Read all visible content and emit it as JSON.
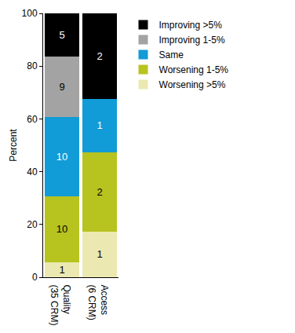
{
  "chart_data": {
    "type": "bar",
    "stacked": true,
    "y_label": "Percent",
    "categories": [
      "Quality\n(35 CRM)",
      "Access\n(6 CRM)"
    ],
    "series": [
      {
        "name": "Worsening >5%",
        "color": "#ebe9b1",
        "values": [
          5.7,
          17.4
        ],
        "counts": [
          1,
          1
        ]
      },
      {
        "name": "Worsening 1-5%",
        "color": "#b7c31f",
        "values": [
          25,
          30
        ],
        "counts": [
          10,
          2
        ]
      },
      {
        "name": "Same",
        "color": "#119bd7",
        "values": [
          30,
          20.2
        ],
        "counts": [
          10,
          1
        ]
      },
      {
        "name": "Improving 1-5%",
        "color": "#a3a3a3",
        "values": [
          22.8,
          0
        ],
        "counts": [
          9,
          null
        ]
      },
      {
        "name": "Improving >5%",
        "color": "#000000",
        "values": [
          16.5,
          32.4
        ],
        "counts": [
          5,
          2
        ]
      }
    ],
    "ylim": [
      0,
      100
    ],
    "yticks": [
      0,
      20,
      40,
      60,
      80,
      100
    ],
    "grid": false,
    "legend": "right"
  }
}
